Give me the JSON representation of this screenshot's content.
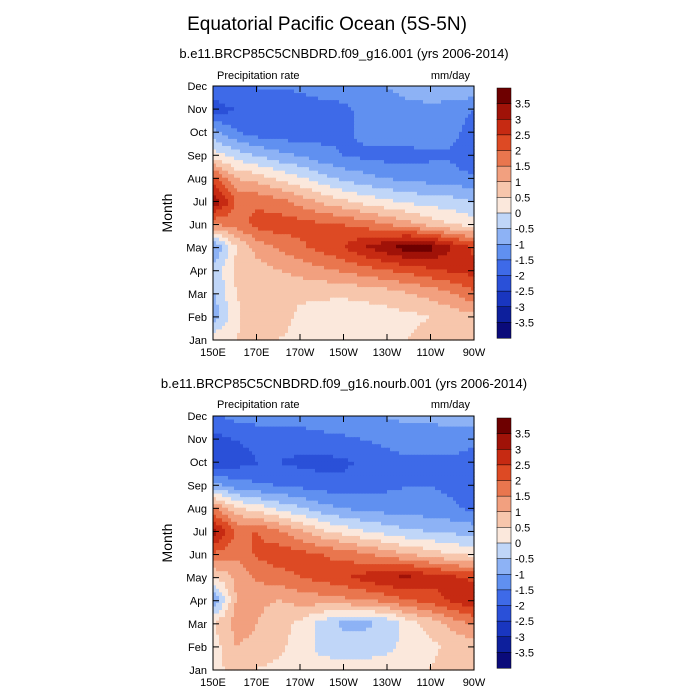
{
  "figure_title": "Equatorial Pacific Ocean (5S-5N)",
  "chart_data": [
    {
      "type": "heatmap",
      "title": "b.e11.BRCP85C5CNBDRD.f09_g16.001 (yrs 2006-2014)",
      "left_label": "Precipitation rate",
      "right_label": "mm/day",
      "ylabel": "Month",
      "xlabel": "",
      "x_ticks": [
        "150E",
        "170E",
        "170W",
        "150W",
        "130W",
        "110W",
        "90W"
      ],
      "y_ticks": [
        "Jan",
        "Feb",
        "Mar",
        "Apr",
        "May",
        "Jun",
        "Jul",
        "Aug",
        "Sep",
        "Oct",
        "Nov",
        "Dec"
      ],
      "xlim": [
        150,
        270
      ],
      "colorbar_levels": [
        -3.5,
        -3,
        -2.5,
        -2,
        -1.5,
        -1,
        -0.5,
        0,
        0.5,
        1,
        1.5,
        2,
        2.5,
        3,
        3.5
      ],
      "colorbar_labels": [
        "3.5",
        "3",
        "2.5",
        "2",
        "1.5",
        "1",
        "0.5",
        "0",
        "-0.5",
        "-1",
        "-1.5",
        "-2",
        "-2.5",
        "-3",
        "-3.5"
      ],
      "z": [
        [
          0.3,
          0.5,
          0.6,
          0.5,
          0.4,
          0.4,
          0.3,
          0.3,
          0.4,
          0.5,
          0.6,
          0.7,
          0.7
        ],
        [
          -0.8,
          0.4,
          0.9,
          0.7,
          0.4,
          0.3,
          0.2,
          0.2,
          0.3,
          0.4,
          0.5,
          0.7,
          0.9
        ],
        [
          -0.5,
          0.5,
          0.7,
          0.6,
          0.6,
          0.6,
          0.6,
          0.7,
          0.8,
          1.0,
          1.2,
          1.5,
          1.9
        ],
        [
          -0.3,
          0.6,
          0.8,
          1.0,
          1.2,
          1.4,
          1.6,
          1.8,
          2.0,
          2.2,
          2.4,
          2.6,
          2.7
        ],
        [
          -1.0,
          0.5,
          1.2,
          1.6,
          1.9,
          2.2,
          2.5,
          3.0,
          3.4,
          3.8,
          3.7,
          3.0,
          2.4
        ],
        [
          1.5,
          1.7,
          2.2,
          2.3,
          2.2,
          2.1,
          2.0,
          1.8,
          1.5,
          1.2,
          0.8,
          0.5,
          0.3
        ],
        [
          3.4,
          2.0,
          1.9,
          1.7,
          1.3,
          0.9,
          0.6,
          0.3,
          0.1,
          -0.1,
          -0.2,
          -0.3,
          -0.5
        ],
        [
          2.2,
          1.0,
          0.8,
          0.4,
          0.1,
          -0.3,
          -0.6,
          -0.8,
          -1.0,
          -1.1,
          -1.2,
          -1.2,
          -1.4
        ],
        [
          0.3,
          -0.2,
          -0.5,
          -0.8,
          -1.0,
          -1.3,
          -1.5,
          -1.6,
          -1.7,
          -1.7,
          -1.6,
          -1.6,
          -2.0
        ],
        [
          -0.8,
          -1.4,
          -1.7,
          -1.8,
          -1.8,
          -1.7,
          -1.6,
          -1.4,
          -1.3,
          -1.2,
          -1.2,
          -1.3,
          -1.8
        ],
        [
          -2.2,
          -2.0,
          -1.8,
          -2.0,
          -1.8,
          -1.7,
          -1.6,
          -1.4,
          -1.2,
          -1.1,
          -1.1,
          -1.2,
          -1.5
        ],
        [
          -1.8,
          -1.6,
          -1.5,
          -1.5,
          -1.4,
          -1.3,
          -1.3,
          -1.2,
          -1.0,
          -0.9,
          -0.8,
          -0.7,
          -0.6
        ]
      ]
    },
    {
      "type": "heatmap",
      "title": "b.e11.BRCP85C5CNBDRD.f09_g16.nourb.001 (yrs 2006-2014)",
      "left_label": "Precipitation rate",
      "right_label": "mm/day",
      "ylabel": "Month",
      "xlabel": "",
      "x_ticks": [
        "150E",
        "170E",
        "170W",
        "150W",
        "130W",
        "110W",
        "90W"
      ],
      "y_ticks": [
        "Jan",
        "Feb",
        "Mar",
        "Apr",
        "May",
        "Jun",
        "Jul",
        "Aug",
        "Sep",
        "Oct",
        "Nov",
        "Dec"
      ],
      "xlim": [
        150,
        270
      ],
      "colorbar_levels": [
        -3.5,
        -3,
        -2.5,
        -2,
        -1.5,
        -1,
        -0.5,
        0,
        0.5,
        1,
        1.5,
        2,
        2.5,
        3,
        3.5
      ],
      "colorbar_labels": [
        "3.5",
        "3",
        "2.5",
        "2",
        "1.5",
        "1",
        "0.5",
        "0",
        "-0.5",
        "-1",
        "-1.5",
        "-2",
        "-2.5",
        "-3",
        "-3.5"
      ],
      "z": [
        [
          0.4,
          0.6,
          0.5,
          0.4,
          0.3,
          0.2,
          0.2,
          0.2,
          0.3,
          0.4,
          0.5,
          0.6,
          0.7
        ],
        [
          0.3,
          1.0,
          0.9,
          0.6,
          0.3,
          -0.2,
          -0.3,
          -0.3,
          -0.2,
          0.2,
          0.4,
          0.6,
          0.8
        ],
        [
          0.5,
          1.2,
          1.0,
          0.7,
          0.4,
          -0.2,
          -0.6,
          -0.6,
          -0.4,
          0.3,
          0.7,
          1.2,
          1.6
        ],
        [
          -1.0,
          1.0,
          1.1,
          1.0,
          1.2,
          1.3,
          1.4,
          1.5,
          1.7,
          2.0,
          2.2,
          2.6,
          3.0
        ],
        [
          0.5,
          1.1,
          1.6,
          1.8,
          2.0,
          2.2,
          2.4,
          2.7,
          3.0,
          3.1,
          2.8,
          2.6,
          2.4
        ],
        [
          1.9,
          1.6,
          2.1,
          2.3,
          2.2,
          2.0,
          1.8,
          1.6,
          1.3,
          1.0,
          0.8,
          0.5,
          0.4
        ],
        [
          3.2,
          2.0,
          2.0,
          1.6,
          1.1,
          0.6,
          0.3,
          0.0,
          -0.2,
          -0.4,
          -0.5,
          -0.6,
          -0.7
        ],
        [
          1.6,
          0.6,
          0.3,
          -0.1,
          -0.4,
          -0.8,
          -1.0,
          -1.1,
          -1.2,
          -1.2,
          -1.3,
          -1.4,
          -1.6
        ],
        [
          -0.8,
          -1.2,
          -1.4,
          -1.5,
          -1.6,
          -1.7,
          -1.8,
          -1.7,
          -1.6,
          -1.5,
          -1.5,
          -1.6,
          -1.8
        ],
        [
          -2.4,
          -2.2,
          -2.0,
          -2.0,
          -2.1,
          -2.2,
          -2.1,
          -1.9,
          -1.7,
          -1.6,
          -1.6,
          -1.6,
          -1.7
        ],
        [
          -2.2,
          -2.0,
          -1.9,
          -1.9,
          -1.8,
          -1.7,
          -1.6,
          -1.5,
          -1.4,
          -1.3,
          -1.3,
          -1.3,
          -1.4
        ],
        [
          -1.6,
          -1.4,
          -1.3,
          -1.3,
          -1.3,
          -1.2,
          -1.2,
          -1.1,
          -1.0,
          -0.9,
          -0.9,
          -0.8,
          -0.8
        ]
      ]
    }
  ],
  "colors": {
    "level_colors": [
      "#0a0a7a",
      "#0d1f9c",
      "#1936c0",
      "#2a50d8",
      "#3e6ae8",
      "#6090f0",
      "#8db2f5",
      "#c0d6f8",
      "#fbe8dc",
      "#f7c6ac",
      "#f2a07f",
      "#e9764e",
      "#dd4a24",
      "#c62a12",
      "#a01208",
      "#6e0000"
    ],
    "frame": "#000000"
  }
}
